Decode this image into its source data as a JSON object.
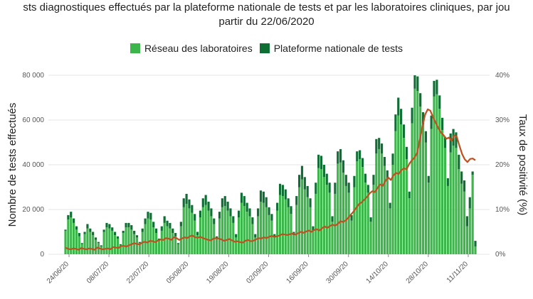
{
  "chart_data": {
    "type": "bar",
    "title_line1": "sts diagnostiques effectués par la plateforme nationale de tests et par les laboratoires cliniques, par jou",
    "title_line2": "partir du 22/06/2020",
    "ylabel": "Nombre de tests effectués",
    "y2label": "Taux de positivité (%)",
    "ylim": [
      0,
      80000
    ],
    "y2lim": [
      0,
      40
    ],
    "yticks": [
      "0",
      "20 000",
      "40 000",
      "60 000",
      "80 000"
    ],
    "y2ticks": [
      "0%",
      "10%",
      "20%",
      "30%",
      "40%"
    ],
    "xticks": [
      "24/06/20",
      "08/07/20",
      "22/07/20",
      "05/08/20",
      "19/08/20",
      "02/09/20",
      "16/09/20",
      "30/09/20",
      "14/10/20",
      "28/10/20",
      "11/11/20"
    ],
    "x_start": "22/06/2020",
    "grid": true,
    "legend_position": "top",
    "colors": {
      "reseau": "#3cb54a",
      "plateforme": "#0f6e33",
      "positivity": "#c0501f"
    },
    "series": [
      {
        "name": "Réseau des laboratoires",
        "values": [
          10500,
          15500,
          16500,
          14000,
          11000,
          8000,
          4500,
          9000,
          11500,
          10000,
          8500,
          6500,
          5000,
          3500,
          10000,
          12000,
          11500,
          10500,
          8500,
          7000,
          4000,
          9500,
          12000,
          12000,
          11000,
          9000,
          7500,
          5000,
          10000,
          13500,
          16000,
          15500,
          12000,
          9500,
          6000,
          10500,
          14000,
          12500,
          11500,
          9500,
          8000,
          4500,
          12500,
          21000,
          22500,
          20500,
          18500,
          15000,
          8500,
          16500,
          21000,
          22000,
          19500,
          17000,
          13500,
          7000,
          16000,
          21000,
          21500,
          19500,
          17000,
          14000,
          7500,
          16500,
          23000,
          21500,
          19000,
          17000,
          13500,
          7500,
          17000,
          23500,
          23000,
          21000,
          17500,
          15000,
          7500,
          19500,
          26500,
          26000,
          24500,
          21000,
          18000,
          8500,
          22000,
          30000,
          33500,
          29000,
          25500,
          21000,
          10500,
          27000,
          38500,
          38000,
          34500,
          31000,
          27500,
          14500,
          27000,
          40500,
          41000,
          36500,
          30500,
          27500,
          15000,
          30000,
          41500,
          42500,
          39000,
          32000,
          27500,
          14500,
          31000,
          45000,
          47000,
          45000,
          39500,
          33500,
          20500,
          40000,
          55000,
          62000,
          58000,
          52000,
          42500,
          25000,
          58500,
          74000,
          73000,
          66000,
          58000,
          50000,
          32000,
          56000,
          70500,
          71500,
          65000,
          55500,
          47500,
          30500,
          45500,
          48500,
          47500,
          38000,
          31500,
          28000,
          12500,
          20500,
          35500,
          3500
        ]
      },
      {
        "name": "Plateforme nationale de tests",
        "values": [
          500,
          2000,
          2500,
          2000,
          1500,
          1500,
          500,
          1000,
          2000,
          1500,
          1500,
          1000,
          500,
          500,
          1000,
          2000,
          2000,
          1500,
          1500,
          1000,
          500,
          1000,
          2000,
          2000,
          2000,
          1500,
          1000,
          500,
          1500,
          2500,
          3000,
          3000,
          2500,
          2000,
          1000,
          2000,
          3000,
          2500,
          2500,
          2000,
          1500,
          500,
          2000,
          4000,
          4500,
          4000,
          3500,
          3000,
          1500,
          3000,
          4000,
          4500,
          4000,
          3500,
          2500,
          1000,
          3000,
          4000,
          4500,
          4000,
          3500,
          3000,
          1500,
          3000,
          4500,
          4500,
          4000,
          3500,
          3000,
          1500,
          3500,
          5000,
          5000,
          4500,
          3500,
          3000,
          1500,
          3500,
          5000,
          5000,
          4500,
          4000,
          3500,
          1500,
          4000,
          5500,
          6000,
          5500,
          5000,
          4000,
          2000,
          5000,
          6000,
          6000,
          5500,
          5000,
          4500,
          2500,
          5000,
          5500,
          6000,
          5500,
          5000,
          4500,
          2500,
          5000,
          4500,
          4000,
          4000,
          4000,
          3500,
          2000,
          4500,
          6500,
          5000,
          4500,
          4000,
          4000,
          2500,
          5000,
          7500,
          8000,
          7000,
          6000,
          5500,
          3000,
          7000,
          6000,
          6500,
          6000,
          5500,
          5000,
          3000,
          6000,
          7000,
          6500,
          6000,
          5500,
          5000,
          3500,
          8500,
          7500,
          7000,
          6500,
          5500,
          5000,
          4500,
          5000,
          1500,
          2500
        ]
      }
    ],
    "positivity_rate": [
      1.5,
      1.2,
      1.1,
      1.3,
      1.2,
      1.0,
      1.4,
      1.2,
      1.1,
      1.3,
      1.2,
      1.0,
      1.5,
      1.3,
      1.1,
      1.2,
      1.3,
      1.1,
      1.6,
      1.5,
      1.4,
      1.8,
      1.9,
      1.7,
      2.0,
      2.2,
      2.5,
      2.3,
      2.2,
      2.6,
      2.8,
      2.6,
      3.0,
      2.9,
      2.7,
      3.1,
      3.3,
      3.2,
      3.6,
      3.5,
      3.2,
      3.8,
      3.6,
      3.2,
      3.5,
      3.8,
      3.6,
      4.0,
      4.2,
      3.8,
      3.7,
      3.9,
      3.6,
      3.4,
      3.2,
      3.1,
      3.5,
      3.6,
      3.5,
      3.3,
      3.0,
      3.2,
      3.4,
      3.1,
      2.8,
      2.9,
      2.7,
      2.6,
      3.0,
      3.2,
      2.9,
      3.0,
      3.3,
      3.6,
      3.5,
      3.8,
      3.6,
      3.9,
      4.1,
      3.9,
      4.0,
      4.2,
      4.5,
      4.4,
      4.3,
      4.5,
      4.6,
      4.4,
      4.7,
      5.0,
      4.8,
      5.1,
      5.3,
      5.0,
      5.4,
      5.6,
      5.3,
      5.8,
      6.2,
      5.9,
      6.3,
      6.6,
      6.4,
      6.8,
      7.4,
      7.2,
      7.6,
      8.2,
      8.9,
      9.6,
      10.4,
      11.2,
      11.6,
      12.2,
      12.8,
      13.6,
      14.1,
      13.9,
      14.8,
      15.6,
      15.3,
      16.4,
      17.2,
      16.6,
      17.6,
      18.2,
      17.9,
      18.8,
      19.2,
      19.0,
      20.2,
      21.0,
      21.6,
      22.6,
      25.6,
      28.6,
      31.2,
      32.4,
      32.1,
      30.6,
      29.4,
      28.2,
      27.2,
      26.6,
      25.8,
      26.1,
      25.4,
      26.6,
      26.2,
      24.2,
      22.4,
      21.2,
      20.6,
      21.3,
      21.4,
      21.0
    ]
  }
}
